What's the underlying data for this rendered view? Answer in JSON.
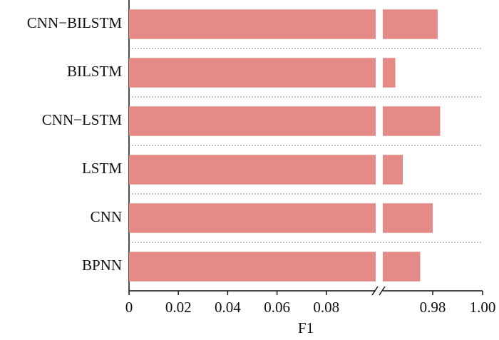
{
  "chart_data": {
    "type": "bar",
    "orientation": "horizontal",
    "categories": [
      "CNN−BILSTM",
      "BILSTM",
      "CNN−LSTM",
      "LSTM",
      "CNN",
      "BPNN"
    ],
    "values": [
      0.982,
      0.965,
      0.983,
      0.968,
      0.98,
      0.975
    ],
    "color": "#e58a87",
    "xlim": [
      0,
      1.0
    ],
    "x_break": [
      0.1,
      0.96
    ],
    "xticks": [
      0,
      0.02,
      0.04,
      0.06,
      0.08,
      0.98,
      {
        "value": 1.0,
        "label": "1.00"
      }
    ],
    "x_label": "F1",
    "grid": true
  }
}
